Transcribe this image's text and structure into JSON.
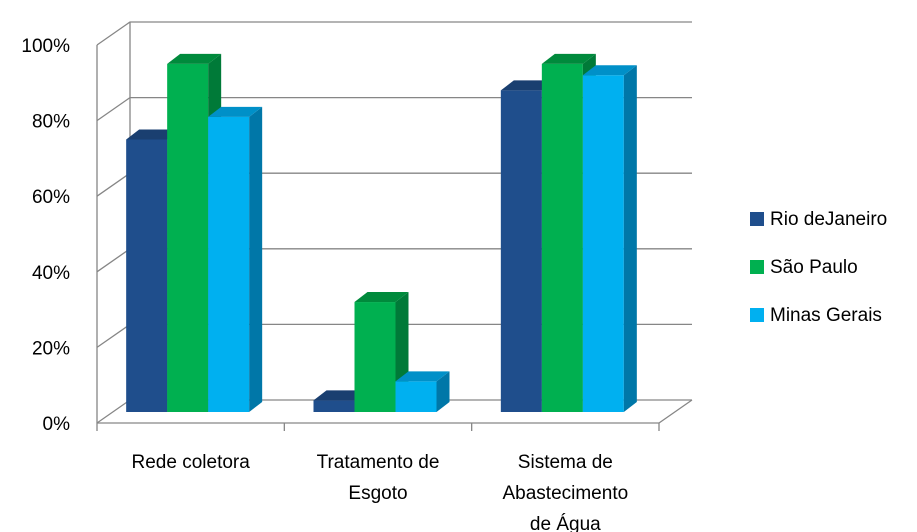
{
  "chart_data": {
    "type": "bar",
    "style": "3d-clustered-column",
    "categories": [
      [
        "Rede coletora"
      ],
      [
        "Tratamento de",
        "Esgoto"
      ],
      [
        "Sistema de",
        "Abastecimento",
        "de Água"
      ]
    ],
    "series": [
      {
        "name": "Rio deJaneiro",
        "values": [
          75,
          6,
          88
        ],
        "color": "#1F4E8C",
        "side": "#1A3F70",
        "top": "#1A3F70"
      },
      {
        "name": "São Paulo",
        "values": [
          95,
          32,
          95
        ],
        "color": "#00B050",
        "side": "#007A38",
        "top": "#008A3C"
      },
      {
        "name": "Minas Gerais",
        "values": [
          81,
          11,
          92
        ],
        "color": "#00B0F0",
        "side": "#0077A8",
        "top": "#0090C8"
      }
    ],
    "yticks": [
      "0%",
      "20%",
      "40%",
      "60%",
      "80%",
      "100%"
    ],
    "ylim": [
      0,
      100
    ],
    "grid": true,
    "legend": "right",
    "title": "",
    "xlabel": "",
    "ylabel": ""
  }
}
